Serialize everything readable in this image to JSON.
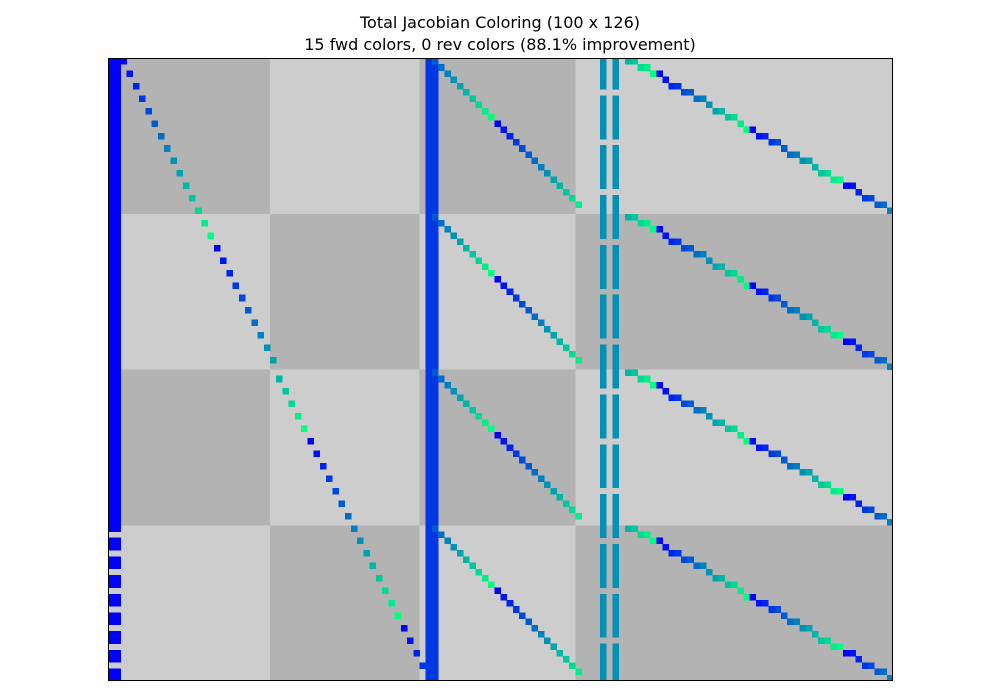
{
  "chart_data": {
    "type": "heatmap",
    "title": "Total Jacobian Coloring (100 x 126)",
    "subtitle": "15 fwd colors, 0 rev colors (88.1% improvement)",
    "rows": 100,
    "cols": 126,
    "fwd_colors": 15,
    "rev_colors": 0,
    "improvement": "88.1%",
    "block_grid": {
      "row_breaks": [
        0,
        25,
        50,
        75,
        100
      ],
      "col_breaks": [
        0,
        26,
        50,
        75,
        126
      ],
      "shades": [
        "#b3b3b3",
        "#cdcdcd"
      ]
    },
    "nonzero_structure": [
      {
        "name": "dense column",
        "cols": [
          0,
          1
        ],
        "rows": [
          0,
          99
        ]
      },
      {
        "name": "dense column",
        "cols": [
          51,
          52
        ],
        "rows": [
          0,
          99
        ]
      },
      {
        "name": "dense column",
        "cols": [
          79,
          79
        ],
        "rows": [
          0,
          99
        ]
      },
      {
        "name": "dense column",
        "cols": [
          81,
          81
        ],
        "rows": [
          0,
          99
        ]
      },
      {
        "name": "diagonal band",
        "col_start": 2,
        "col_end": 51,
        "row_start": 0
      },
      {
        "name": "diagonal band",
        "col_start": 52,
        "col_end": 76,
        "row_start": 0,
        "repeat_every_rows": 25
      },
      {
        "name": "diagonal band",
        "col_start": 83,
        "col_end": 126,
        "row_start": 0,
        "repeat_every_rows": 25
      }
    ],
    "colormap": "winter",
    "grid": false,
    "legend": "none"
  },
  "colors": {
    "shade_dark": "#b3b3b3",
    "shade_light": "#cdcdcd",
    "winter_start": "#0000ff",
    "winter_end": "#00ff80"
  }
}
